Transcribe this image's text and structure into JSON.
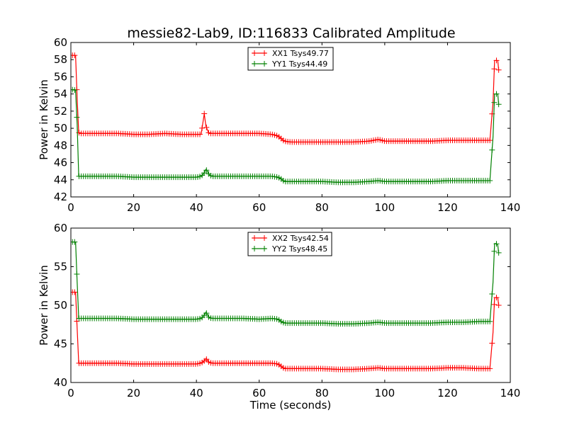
{
  "figure": {
    "title": "messie82-Lab9, ID:116833 Calibrated Amplitude"
  },
  "chart_data": [
    {
      "type": "line",
      "title": "messie82-Lab9, ID:116833 Calibrated Amplitude",
      "xlabel": "",
      "ylabel": "Power in Kelvin",
      "xlim": [
        0,
        140
      ],
      "ylim": [
        42,
        60
      ],
      "xticks": [
        "0",
        "20",
        "40",
        "60",
        "80",
        "100",
        "120",
        "140"
      ],
      "yticks": [
        "42",
        "44",
        "46",
        "48",
        "50",
        "52",
        "54",
        "56",
        "58",
        "60"
      ],
      "legend_position": "top-center",
      "grid": false,
      "series": [
        {
          "name": "XX1 Tsys49.77",
          "color": "#ff0000",
          "x": [
            0.5,
            1.0,
            1.5,
            2.0,
            2.5,
            3,
            5,
            10,
            15,
            20,
            25,
            30,
            35,
            40,
            41.5,
            42.5,
            43.0,
            43.5,
            44.0,
            45,
            50,
            55,
            60,
            64,
            66,
            67,
            68,
            70,
            75,
            80,
            85,
            90,
            95,
            98,
            100,
            105,
            110,
            115,
            120,
            125,
            130,
            133.5,
            134.5,
            135,
            135.5,
            136,
            136.3
          ],
          "values": [
            58.5,
            58.5,
            58.5,
            53.5,
            49.5,
            49.4,
            49.4,
            49.4,
            49.4,
            49.3,
            49.3,
            49.4,
            49.3,
            49.3,
            49.3,
            51.7,
            50.3,
            49.8,
            49.4,
            49.4,
            49.4,
            49.4,
            49.4,
            49.3,
            49.1,
            48.8,
            48.5,
            48.4,
            48.4,
            48.4,
            48.4,
            48.4,
            48.5,
            48.7,
            48.5,
            48.5,
            48.5,
            48.5,
            48.6,
            48.6,
            48.6,
            48.6,
            53.0,
            57.9,
            57.9,
            57.9,
            56.8
          ]
        },
        {
          "name": "YY1 Tsys44.49",
          "color": "#008000",
          "x": [
            0.5,
            1.0,
            1.5,
            2.0,
            2.5,
            3,
            5,
            10,
            15,
            20,
            25,
            30,
            35,
            40,
            41.5,
            42.5,
            43.0,
            43.5,
            44.0,
            45,
            50,
            55,
            60,
            64,
            66,
            67,
            68,
            70,
            75,
            80,
            85,
            90,
            95,
            98,
            100,
            105,
            110,
            115,
            120,
            125,
            130,
            133.5,
            134.5,
            135,
            135.5,
            136,
            136.3
          ],
          "values": [
            54.5,
            54.5,
            54.4,
            50.5,
            44.4,
            44.4,
            44.4,
            44.4,
            44.4,
            44.3,
            44.3,
            44.3,
            44.3,
            44.3,
            44.4,
            44.8,
            45.2,
            45.0,
            44.6,
            44.4,
            44.4,
            44.4,
            44.4,
            44.4,
            44.3,
            44.1,
            43.8,
            43.8,
            43.8,
            43.8,
            43.7,
            43.7,
            43.8,
            43.9,
            43.8,
            43.8,
            43.8,
            43.8,
            43.9,
            43.9,
            43.9,
            43.9,
            49.0,
            54.0,
            54.0,
            54.0,
            52.8
          ]
        }
      ]
    },
    {
      "type": "line",
      "title": "",
      "xlabel": "Time (seconds)",
      "ylabel": "Power in Kelvin",
      "xlim": [
        0,
        140
      ],
      "ylim": [
        40,
        60
      ],
      "xticks": [
        "0",
        "20",
        "40",
        "60",
        "80",
        "100",
        "120",
        "140"
      ],
      "yticks": [
        "40",
        "45",
        "50",
        "55",
        "60"
      ],
      "legend_position": "top-center",
      "grid": false,
      "series": [
        {
          "name": "XX2 Tsys42.54",
          "color": "#ff0000",
          "x": [
            0.5,
            1.0,
            1.5,
            2.0,
            2.5,
            3,
            5,
            10,
            15,
            20,
            25,
            30,
            35,
            40,
            41.5,
            42.5,
            43.0,
            43.5,
            44.0,
            45,
            50,
            55,
            60,
            64,
            66,
            67,
            68,
            70,
            75,
            80,
            85,
            90,
            95,
            98,
            100,
            105,
            110,
            115,
            120,
            125,
            130,
            133.5,
            134.5,
            135,
            135.5,
            136,
            136.3
          ],
          "values": [
            51.7,
            51.7,
            51.7,
            47.0,
            42.5,
            42.5,
            42.5,
            42.5,
            42.5,
            42.4,
            42.4,
            42.4,
            42.4,
            42.4,
            42.5,
            42.8,
            43.1,
            42.9,
            42.6,
            42.5,
            42.5,
            42.5,
            42.5,
            42.5,
            42.4,
            42.1,
            41.8,
            41.8,
            41.8,
            41.8,
            41.7,
            41.7,
            41.8,
            41.9,
            41.8,
            41.8,
            41.8,
            41.8,
            41.9,
            41.9,
            41.8,
            41.8,
            46.5,
            51.0,
            51.0,
            51.0,
            50.0
          ]
        },
        {
          "name": "YY2 Tsys48.45",
          "color": "#008000",
          "x": [
            0.5,
            1.0,
            1.5,
            2.0,
            2.5,
            3,
            5,
            10,
            15,
            20,
            25,
            30,
            35,
            40,
            41.5,
            42.5,
            43.0,
            43.5,
            44.0,
            45,
            50,
            55,
            60,
            64,
            66,
            67,
            68,
            70,
            75,
            80,
            85,
            90,
            95,
            98,
            100,
            105,
            110,
            115,
            120,
            125,
            130,
            133.5,
            134.5,
            135,
            135.5,
            136,
            136.3
          ],
          "values": [
            58.2,
            58.2,
            58.2,
            53.0,
            48.3,
            48.3,
            48.3,
            48.3,
            48.3,
            48.2,
            48.2,
            48.2,
            48.2,
            48.2,
            48.3,
            48.7,
            49.1,
            48.8,
            48.4,
            48.3,
            48.3,
            48.3,
            48.2,
            48.3,
            48.2,
            47.9,
            47.7,
            47.7,
            47.7,
            47.7,
            47.6,
            47.6,
            47.7,
            47.8,
            47.7,
            47.7,
            47.7,
            47.7,
            47.8,
            47.8,
            47.9,
            47.9,
            53.0,
            58.0,
            58.0,
            57.8,
            56.8
          ]
        }
      ]
    }
  ]
}
